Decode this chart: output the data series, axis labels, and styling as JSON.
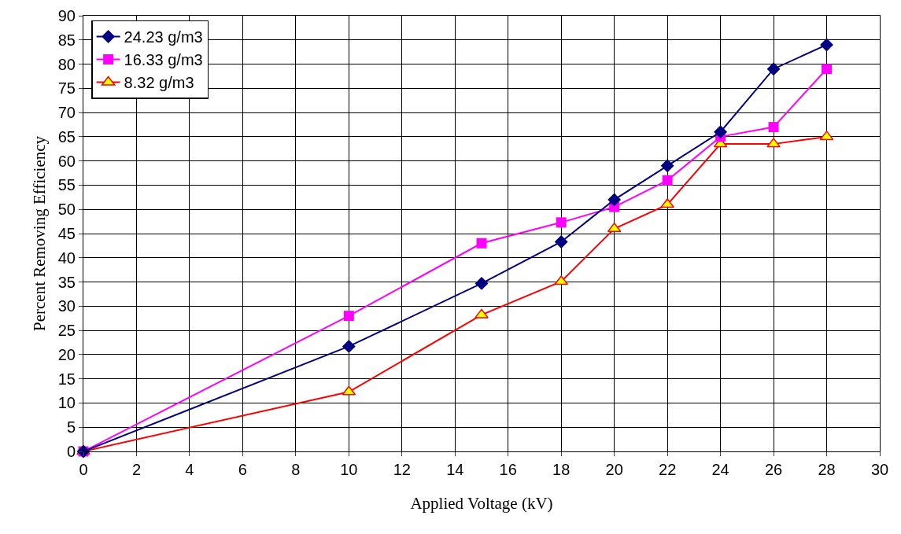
{
  "chart_data": {
    "type": "line",
    "xlabel": "Applied Voltage (kV)",
    "ylabel": "Percent Removing Efficiency",
    "x": [
      0,
      10,
      15,
      18,
      20,
      22,
      24,
      26,
      28
    ],
    "series": [
      {
        "name": "24.23 g/m3",
        "color": "#000080",
        "marker": "diamond",
        "values": [
          0,
          21.7,
          34.7,
          43.3,
          52,
          59,
          66,
          79,
          84
        ]
      },
      {
        "name": "16.33 g/m3",
        "color": "#ff00ff",
        "marker": "square",
        "values": [
          0,
          28,
          43,
          47.3,
          50.5,
          56,
          65,
          67,
          79
        ]
      },
      {
        "name": "8.32 g/m3",
        "color": "#ff0000",
        "marker": "triangle",
        "values": [
          0,
          12.3,
          28.2,
          35.1,
          46,
          51,
          63.5,
          63.5,
          65
        ]
      }
    ],
    "xlim": [
      0,
      30
    ],
    "xticks": [
      0,
      2,
      4,
      6,
      8,
      10,
      12,
      14,
      16,
      18,
      20,
      22,
      24,
      26,
      28,
      30
    ],
    "ylim": [
      0,
      90
    ],
    "yticks": [
      0,
      5,
      10,
      15,
      20,
      25,
      30,
      35,
      40,
      45,
      50,
      55,
      60,
      65,
      70,
      75,
      80,
      85,
      90
    ],
    "grid": true,
    "legend": "top left",
    "line_style": "solid"
  }
}
